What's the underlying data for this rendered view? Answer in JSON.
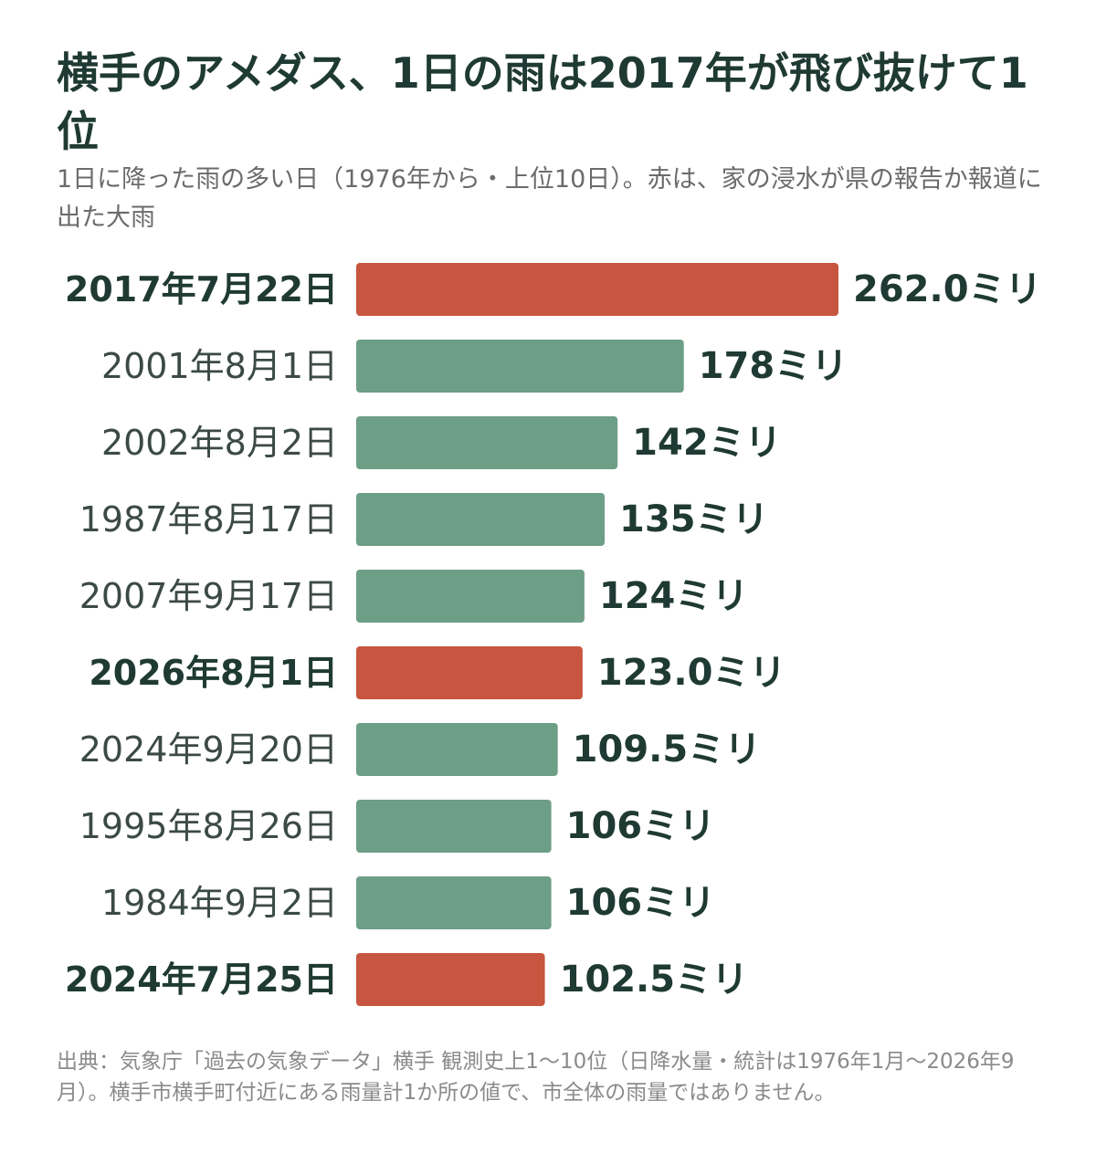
{
  "title": "横手のアメダス、1日の雨は2017年が飛び抜けて1位",
  "subtitle": "1日に降った雨の多い日（1976年から・上位10日）。赤は、家の浸水が県の報告か報道に出た大雨",
  "source": "出典：気象庁「過去の気象データ」横手 観測史上1～10位（日降水量・統計は1976年1月～2026年9月）。横手市横手町付近にある雨量計1か所の値で、市全体の雨量ではありません。",
  "colors": {
    "highlight": "#c7553f",
    "normal": "#6d9e86",
    "text": "#1f3a33",
    "label_normal": "#3c4a45"
  },
  "chart_data": {
    "type": "bar",
    "orientation": "horizontal",
    "categories": [
      "2017年7月22日",
      "2001年8月1日",
      "2002年8月2日",
      "1987年8月17日",
      "2007年9月17日",
      "2026年8月1日",
      "2024年9月20日",
      "1995年8月26日",
      "1984年9月2日",
      "2024年7月25日"
    ],
    "values": [
      262.0,
      178,
      142,
      135,
      124,
      123.0,
      109.5,
      106,
      106,
      102.5
    ],
    "value_labels": [
      "262.0ミリ",
      "178ミリ",
      "142ミリ",
      "135ミリ",
      "124ミリ",
      "123.0ミリ",
      "109.5ミリ",
      "106ミリ",
      "106ミリ",
      "102.5ミリ"
    ],
    "highlighted": [
      true,
      false,
      false,
      false,
      false,
      true,
      false,
      false,
      false,
      true
    ],
    "xlim": [
      0,
      262
    ],
    "grid": false,
    "legend": "none"
  }
}
